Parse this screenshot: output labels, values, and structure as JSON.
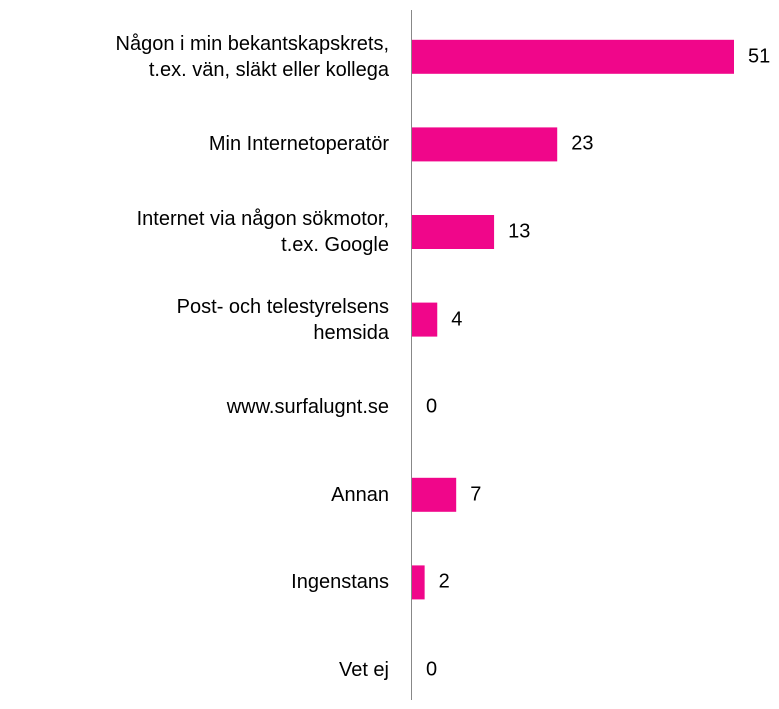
{
  "chart_data": {
    "type": "bar",
    "orientation": "horizontal",
    "categories": [
      "Någon i min bekantskapskrets,\nt.ex. vän, släkt eller kollega",
      "Min Internetoperatör",
      "Internet via någon sökmotor,\nt.ex. Google",
      "Post- och telestyrelsens\nhemsida",
      "www.surfalugnt.se",
      "Annan",
      "Ingenstans",
      "Vet ej"
    ],
    "values": [
      51,
      23,
      13,
      4,
      0,
      7,
      2,
      0
    ],
    "color": "#f0068a"
  }
}
